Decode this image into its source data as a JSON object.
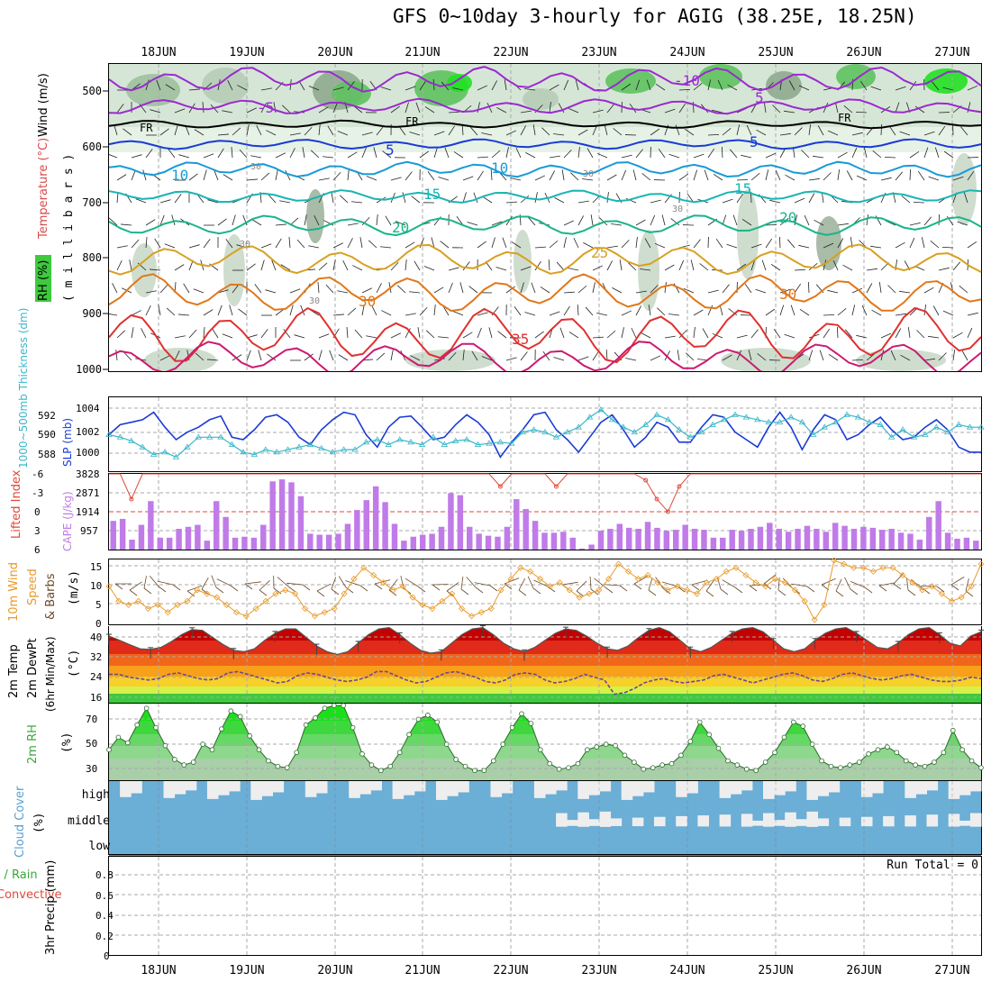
{
  "title": "GFS 0~10day 3-hourly for AGIG (38.25E, 18.25N)",
  "dates": [
    "18JUN",
    "19JUN",
    "20JUN",
    "21JUN",
    "22JUN",
    "23JUN",
    "24JUN",
    "25JUN",
    "26JUN",
    "27JUN"
  ],
  "colors": {
    "rh_green": "#3ec93e",
    "wind_label": "#000000",
    "temp_label": "#d84a4a",
    "thickness": "#3ab7c9",
    "slp": "#1a3ad6",
    "lifted_index": "#e0483a",
    "cape": "#c07be8",
    "speed": "#e89a2a",
    "barbs": "#6b4a2a",
    "rh2m": "#3aa83a",
    "cloud": "#6baed6",
    "cloud_gap": "#eeeeee",
    "precip_total": "#3aa83a",
    "precip_conv": "#e0483a"
  },
  "panels": {
    "upper": {
      "ylabel_parts": [
        "RH (%)",
        "Temperature (°C)",
        "Wind (m/s)"
      ],
      "ylabel_units": "( m i l l i b a r s )",
      "yticks": [
        "500",
        "600",
        "700",
        "800",
        "900",
        "1000"
      ],
      "iso_labels": [
        "-10",
        "5",
        "-5",
        "FR",
        "FR",
        "FR",
        "5",
        "5",
        "10",
        "10",
        "15",
        "15",
        "20",
        "20",
        "25",
        "30",
        "30",
        "35",
        "30",
        "30",
        "30",
        "30",
        "30"
      ]
    },
    "thick": {
      "ylabel_left": "1000~500mb Thickness (dm)",
      "ylabel_right": "SLP (mb)",
      "left_ticks": [
        "592",
        "590",
        "588"
      ],
      "right_ticks": [
        "1004",
        "1002",
        "1000"
      ]
    },
    "li": {
      "ylabel_left": "Lifted Index",
      "ylabel_right": "CAPE (J/kg)",
      "left_ticks": [
        "-6",
        "-3",
        "0",
        "3",
        "6"
      ],
      "right_ticks": [
        "3828",
        "2871",
        "1914",
        "957"
      ]
    },
    "wind10": {
      "ylabel_a": "10m Wind",
      "ylabel_b": "Speed",
      "ylabel_c": "& Barbs",
      "units": "(m/s)",
      "ticks": [
        "15",
        "10",
        "5",
        "0"
      ]
    },
    "temp2m": {
      "ylabel_a": "2m Temp",
      "ylabel_b": "2m DewPt",
      "ylabel_c": "(6hr Min/Max)",
      "units": "(°C)",
      "ticks": [
        "40",
        "32",
        "24",
        "16"
      ]
    },
    "rh2m": {
      "ylabel": "2m RH",
      "units": "(%)",
      "ticks": [
        "70",
        "50",
        "30"
      ]
    },
    "cloud": {
      "ylabel": "Cloud Cover",
      "units": "(%)",
      "levels": [
        "high",
        "middle",
        "low"
      ]
    },
    "precip": {
      "ylabel_a": "Total / Rain",
      "ylabel_b": "Convective",
      "ylabel_c": "3hr Precip (mm)",
      "ticks": [
        "0.8",
        "0.6",
        "0.4",
        "0.2",
        "0"
      ],
      "run_total": "Run Total = 0"
    }
  },
  "chart_data": [
    {
      "type": "line",
      "name": "sea-level-pressure",
      "ylabel": "SLP (mb)",
      "ylim": [
        999,
        1005
      ],
      "values": [
        1002.0,
        1002.8,
        1003.0,
        1003.2,
        1003.8,
        1002.6,
        1001.6,
        1002.2,
        1002.6,
        1003.2,
        1003.5,
        1001.8,
        1001.6,
        1002.4,
        1003.4,
        1003.6,
        1003.0,
        1001.8,
        1001.2,
        1002.4,
        1003.2,
        1003.8,
        1003.6,
        1002.0,
        1001.0,
        1002.6,
        1003.4,
        1003.5,
        1002.6,
        1001.6,
        1001.8,
        1002.8,
        1003.6,
        1003.0,
        1002.0,
        1000.2,
        1001.4,
        1002.4,
        1003.6,
        1003.8,
        1002.4,
        1001.6,
        1000.6,
        1001.8,
        1003.0,
        1003.6,
        1002.4,
        1001.0,
        1001.8,
        1003.0,
        1002.6,
        1001.4,
        1001.4,
        1002.6,
        1003.6,
        1003.4,
        1002.2,
        1001.6,
        1001.0,
        1002.6,
        1003.8,
        1002.6,
        1000.8,
        1002.4,
        1003.6,
        1003.2,
        1001.6,
        1002.0,
        1002.8,
        1003.4,
        1002.4,
        1001.6,
        1001.8,
        1002.6,
        1003.2,
        1002.4,
        1001.0,
        1000.6,
        1000.6
      ]
    },
    {
      "type": "line",
      "name": "thickness",
      "ylabel": "1000~500mb Thickness (dm)",
      "values": [
        590.0,
        589.8,
        589.5,
        589.0,
        588.4,
        588.6,
        588.2,
        589.0,
        589.8,
        589.8,
        589.8,
        589.2,
        588.6,
        588.4,
        588.8,
        588.6,
        588.8,
        589.0,
        589.2,
        588.9,
        588.6,
        588.8,
        588.8,
        589.4,
        589.6,
        589.2,
        589.6,
        589.4,
        589.2,
        589.8,
        589.2,
        589.5,
        589.6,
        589.2,
        589.3,
        589.4,
        589.3,
        590.2,
        590.4,
        590.2,
        589.8,
        590.2,
        590.6,
        591.4,
        592.0,
        591.2,
        590.6,
        590.2,
        590.8,
        591.6,
        591.2,
        590.4,
        589.8,
        590.2,
        590.8,
        591.2,
        591.6,
        591.4,
        591.2,
        591.0,
        591.0,
        591.4,
        591.0,
        590.0,
        590.6,
        591.0,
        591.6,
        591.4,
        591.0,
        590.8,
        589.8,
        590.4,
        589.8,
        590.0,
        590.6,
        590.2,
        590.8,
        590.6,
        590.6
      ]
    },
    {
      "type": "bar",
      "name": "cape",
      "ylabel": "CAPE (J/kg)",
      "ylim": [
        0,
        3828
      ],
      "values": [
        1450,
        1550,
        500,
        1250,
        2450,
        600,
        600,
        1050,
        1150,
        1250,
        450,
        2450,
        1650,
        600,
        650,
        600,
        1250,
        3450,
        3550,
        3400,
        2700,
        800,
        750,
        750,
        800,
        1300,
        2000,
        2500,
        3200,
        2400,
        1300,
        450,
        650,
        750,
        800,
        1150,
        2850,
        2750,
        1150,
        800,
        700,
        650,
        1150,
        2550,
        2050,
        1450,
        850,
        850,
        900,
        600,
        50,
        250,
        950,
        1050,
        1300,
        1100,
        1050,
        1400,
        1100,
        950,
        1000,
        1250,
        1050,
        1000,
        600,
        600,
        1000,
        950,
        1050,
        1150,
        1350,
        1050,
        900,
        1050,
        1200,
        1050,
        900,
        1350,
        1200,
        1050,
        1150,
        1100,
        1000,
        1050,
        850,
        800,
        500,
        1650,
        2450,
        850,
        550,
        600,
        450
      ]
    },
    {
      "type": "line",
      "name": "lifted-index",
      "ylabel": "Lifted Index",
      "ylim": [
        -6,
        6
      ],
      "values": [
        -6,
        -6,
        -2,
        -6,
        -6,
        -6,
        -6,
        -6,
        -6,
        -6,
        -6,
        -6,
        -6,
        -6,
        -6,
        -6,
        -6,
        -6,
        -6,
        -6,
        -6,
        -6,
        -6,
        -6,
        -6,
        -6,
        -6,
        -6,
        -6,
        -6,
        -6,
        -6,
        -6,
        -6,
        -6,
        -4,
        -6,
        -6,
        -6,
        -6,
        -4,
        -6,
        -6,
        -6,
        -6,
        -6,
        -6,
        -6,
        -5,
        -2,
        0,
        -4,
        -6,
        -6,
        -6,
        -6,
        -6,
        -6,
        -6,
        -6,
        -6,
        -6,
        -6,
        -6,
        -6,
        -6,
        -6,
        -6,
        -6,
        -6,
        -6,
        -6,
        -6,
        -6,
        -6,
        -6,
        -6,
        -6,
        -6
      ]
    },
    {
      "type": "line",
      "name": "10m-wind-speed",
      "ylabel": "(m/s)",
      "ylim": [
        0,
        17
      ],
      "values": [
        10,
        6,
        5,
        6,
        4,
        5,
        3,
        5,
        6,
        9,
        8,
        7,
        5,
        3,
        2,
        4,
        6,
        8,
        9,
        8,
        4,
        2,
        3,
        4,
        8,
        12,
        15,
        13,
        11,
        9,
        10,
        7,
        5,
        4,
        6,
        8,
        4,
        2,
        3,
        4,
        9,
        12,
        15,
        14,
        12,
        10,
        11,
        9,
        7,
        8,
        9,
        12,
        16,
        14,
        12,
        13,
        11,
        9,
        10,
        9,
        8,
        11,
        12,
        14,
        15,
        13,
        11,
        10,
        12,
        11,
        9,
        6,
        1,
        5,
        17,
        16,
        15,
        15,
        14,
        15,
        15,
        13,
        11,
        9,
        10,
        8,
        6,
        7,
        10,
        16
      ]
    },
    {
      "type": "area",
      "name": "2m-temperature",
      "ylabel": "(°C)",
      "ylim": [
        14,
        41
      ],
      "values": [
        37.5,
        36,
        34.5,
        33,
        32.8,
        33.5,
        35.5,
        38,
        39.8,
        39.5,
        37,
        34.5,
        32.5,
        32,
        33,
        36,
        38.5,
        40,
        40,
        37,
        34,
        32,
        31,
        32,
        35,
        38,
        40,
        40.5,
        38,
        35,
        32.5,
        31.5,
        32,
        35,
        38,
        40,
        40.5,
        38,
        35,
        33,
        32,
        33.5,
        36,
        38.5,
        40,
        39.5,
        37.5,
        35,
        33,
        32.5,
        34,
        37,
        39.5,
        40.5,
        39,
        36,
        33,
        32,
        33.5,
        36,
        38.5,
        40,
        40.5,
        39,
        36,
        33,
        32,
        33,
        36,
        38.5,
        40,
        40.5,
        38.5,
        36,
        33.5,
        33,
        35,
        38,
        40,
        40.5,
        38,
        35,
        34,
        37.5,
        39
      ]
    },
    {
      "type": "line",
      "name": "2m-dewpoint",
      "ylabel": "(°C)",
      "values": [
        24,
        24,
        23,
        22.5,
        22,
        22.5,
        24,
        24.5,
        23.5,
        22.5,
        22,
        22.5,
        24.5,
        25,
        24,
        23,
        22,
        21,
        21.5,
        23.5,
        24.5,
        24,
        23,
        22,
        21.5,
        22,
        23,
        25,
        25,
        23.5,
        22,
        21,
        21.5,
        23,
        24.5,
        25,
        24,
        23,
        21.5,
        21,
        22,
        24,
        24.5,
        24,
        22,
        21,
        21.5,
        22.5,
        24,
        23,
        22,
        17,
        17.5,
        19,
        21,
        22,
        22.5,
        21.5,
        21,
        21.5,
        22,
        23.5,
        24,
        23,
        22,
        21,
        22,
        23,
        24,
        24.5,
        23.5,
        22,
        21.5,
        22.5,
        24,
        24.5,
        23.5,
        22.5,
        22,
        22.5,
        23.5,
        24,
        23,
        22,
        21.5,
        21.5,
        22,
        23,
        22.5
      ]
    },
    {
      "type": "area",
      "name": "2m-relative-humidity",
      "ylabel": "(%)",
      "ylim": [
        22,
        78
      ],
      "values": [
        44,
        53,
        49,
        62,
        74,
        60,
        47,
        37,
        33,
        35,
        48,
        44,
        59,
        72,
        68,
        54,
        44,
        36,
        32,
        31,
        42,
        62,
        67,
        74,
        76,
        76,
        60,
        41,
        33,
        29,
        32,
        42,
        55,
        66,
        69,
        64,
        48,
        37,
        32,
        29,
        29,
        36,
        48,
        60,
        70,
        63,
        44,
        34,
        30,
        31,
        34,
        44,
        46,
        48,
        47,
        40,
        35,
        30,
        31,
        33,
        34,
        40,
        50,
        64,
        55,
        45,
        36,
        33,
        30,
        29,
        35,
        42,
        53,
        64,
        61,
        48,
        36,
        32,
        31,
        33,
        35,
        41,
        44,
        46,
        42,
        36,
        33,
        32,
        35,
        42,
        58,
        44,
        36,
        31
      ]
    }
  ]
}
